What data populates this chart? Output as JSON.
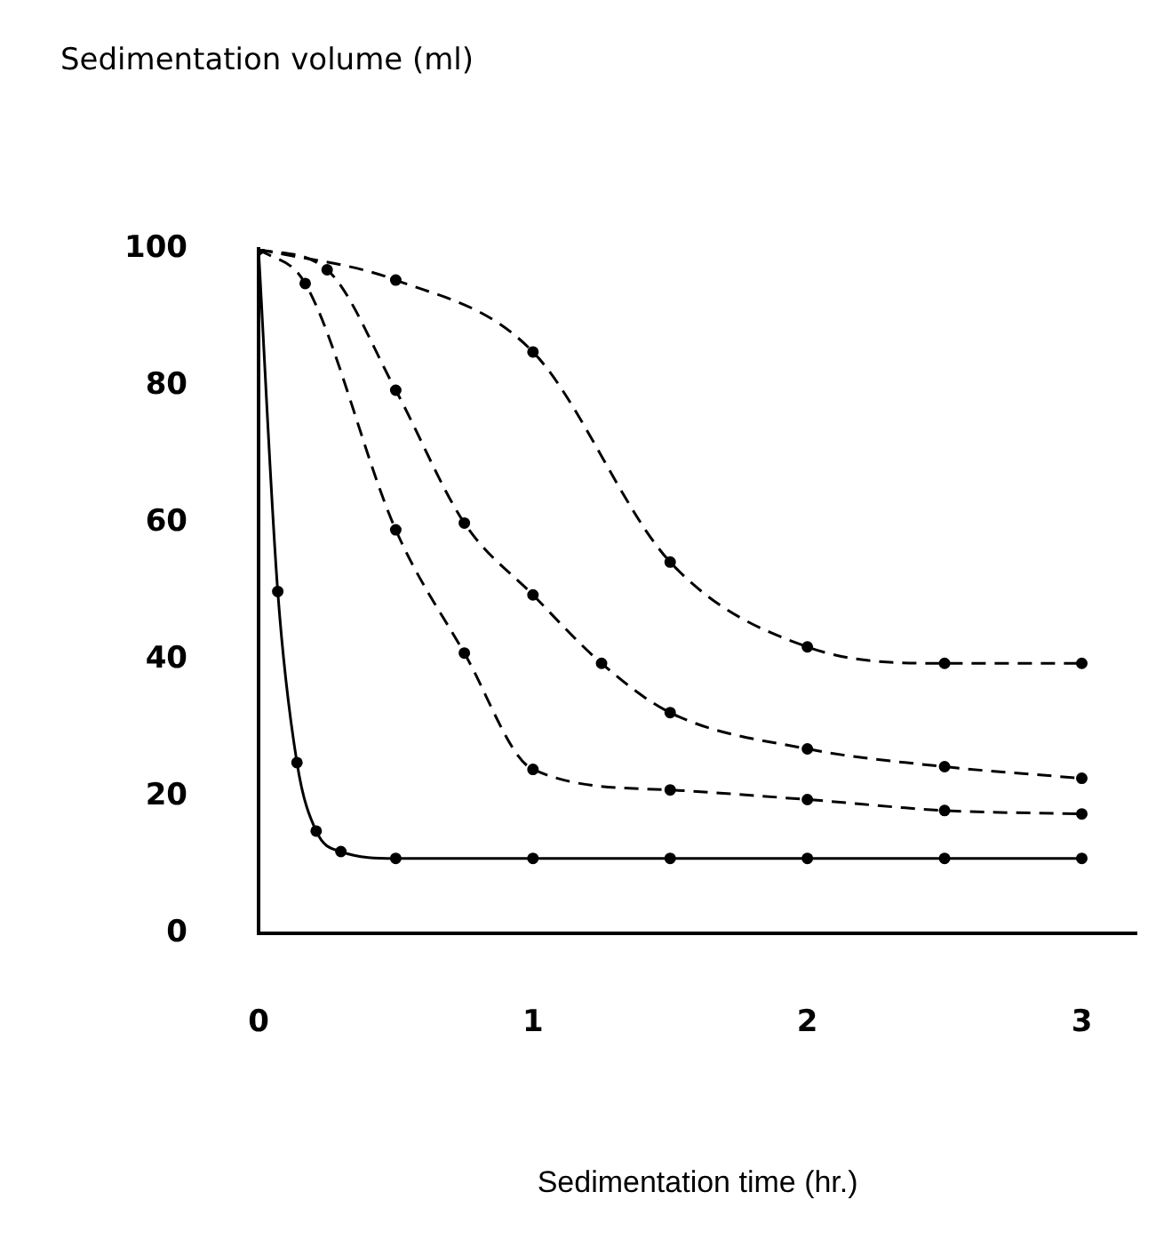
{
  "chart_data": {
    "type": "line",
    "xlabel": "Sedimentation time (hr.)",
    "annotations": [
      "Sedimentation volume (ml)"
    ],
    "xlim": [
      0,
      3.2
    ],
    "xticks": [
      0,
      1,
      2,
      3
    ],
    "ylim": [
      0,
      100
    ],
    "yticks": [
      0,
      20,
      40,
      60,
      80,
      100
    ],
    "grid": false,
    "legend": false,
    "marker": "circle",
    "series": [
      {
        "color": "#000000",
        "line_style": "solid",
        "x": [
          0,
          0.07,
          0.14,
          0.21,
          0.3,
          0.5,
          1,
          1.5,
          2,
          2.5,
          3
        ],
        "values": [
          100,
          50,
          25,
          15,
          12,
          11,
          11,
          11,
          11,
          11,
          11
        ]
      },
      {
        "color": "#000000",
        "line_style": "dashed",
        "x": [
          0,
          0.17,
          0.5,
          0.75,
          1,
          1.5,
          2,
          2.5,
          3
        ],
        "values": [
          100,
          95,
          59,
          41,
          24,
          21,
          19.6,
          18,
          17.5
        ]
      },
      {
        "color": "#000000",
        "line_style": "dashed",
        "x": [
          0,
          0.25,
          0.5,
          0.75,
          1,
          1.25,
          1.5,
          2,
          2.5,
          3
        ],
        "values": [
          100,
          97,
          79.4,
          60,
          49.5,
          39.5,
          32.3,
          27,
          24.4,
          22.7
        ]
      },
      {
        "color": "#000000",
        "line_style": "dashed",
        "x": [
          0,
          0.5,
          1,
          1.5,
          2,
          2.5,
          3
        ],
        "values": [
          100,
          95.5,
          85,
          54.3,
          41.9,
          39.5,
          39.5
        ]
      }
    ]
  }
}
